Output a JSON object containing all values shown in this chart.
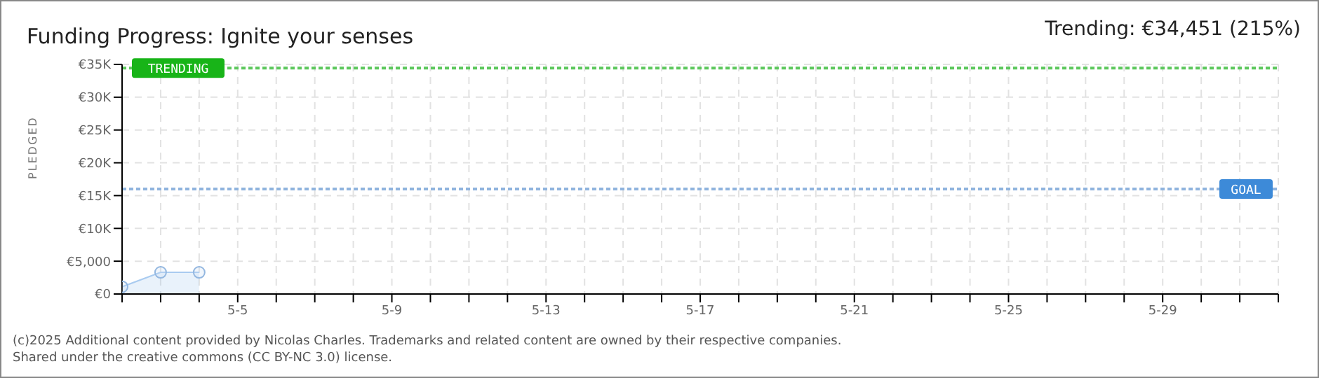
{
  "chart_data": {
    "type": "area",
    "title": "Funding Progress: Ignite your senses",
    "subtitle": "Trending:  €34,451 (215%)",
    "ylabel": "PLEDGED",
    "annotations": [
      "(c)2025 Additional content provided by Nicolas Charles. Trademarks and related content are owned by their respective companies.",
      "Shared under the creative commons (CC BY-NC 3.0) license."
    ],
    "x": [
      "2025-05-02",
      "2025-05-03",
      "2025-05-04"
    ],
    "series": [
      {
        "color": "#a9cbf0",
        "values": [
          1100,
          3300,
          3300
        ]
      }
    ],
    "marker": "circle",
    "grid": true,
    "xlim": [
      "2025-05-02",
      "2025-06-01"
    ],
    "xticks": [
      {
        "value": "2025-05-02",
        "label": null
      },
      {
        "value": "2025-05-03",
        "label": null
      },
      {
        "value": "2025-05-04",
        "label": null
      },
      {
        "value": "2025-05-05",
        "label": "5-5"
      },
      {
        "value": "2025-05-06",
        "label": null
      },
      {
        "value": "2025-05-07",
        "label": null
      },
      {
        "value": "2025-05-08",
        "label": null
      },
      {
        "value": "2025-05-09",
        "label": "5-9"
      },
      {
        "value": "2025-05-10",
        "label": null
      },
      {
        "value": "2025-05-11",
        "label": null
      },
      {
        "value": "2025-05-12",
        "label": null
      },
      {
        "value": "2025-05-13",
        "label": "5-13"
      },
      {
        "value": "2025-05-14",
        "label": null
      },
      {
        "value": "2025-05-15",
        "label": null
      },
      {
        "value": "2025-05-16",
        "label": null
      },
      {
        "value": "2025-05-17",
        "label": "5-17"
      },
      {
        "value": "2025-05-18",
        "label": null
      },
      {
        "value": "2025-05-19",
        "label": null
      },
      {
        "value": "2025-05-20",
        "label": null
      },
      {
        "value": "2025-05-21",
        "label": "5-21"
      },
      {
        "value": "2025-05-22",
        "label": null
      },
      {
        "value": "2025-05-23",
        "label": null
      },
      {
        "value": "2025-05-24",
        "label": null
      },
      {
        "value": "2025-05-25",
        "label": "5-25"
      },
      {
        "value": "2025-05-26",
        "label": null
      },
      {
        "value": "2025-05-27",
        "label": null
      },
      {
        "value": "2025-05-28",
        "label": null
      },
      {
        "value": "2025-05-29",
        "label": "5-29"
      },
      {
        "value": "2025-05-30",
        "label": null
      },
      {
        "value": "2025-05-31",
        "label": null
      },
      {
        "value": "2025-06-01",
        "label": null
      }
    ],
    "ylim": [
      0,
      35000
    ],
    "yticks": [
      {
        "value": 0,
        "label": "€0"
      },
      {
        "value": 5000,
        "label": "€5,000"
      },
      {
        "value": 10000,
        "label": "€10K"
      },
      {
        "value": 15000,
        "label": "€15K"
      },
      {
        "value": 20000,
        "label": "€20K"
      },
      {
        "value": 25000,
        "label": "€25K"
      },
      {
        "value": 30000,
        "label": "€30K"
      },
      {
        "value": 35000,
        "label": "€35K"
      }
    ],
    "ref_lines": [
      {
        "axis": "y",
        "value": 34451,
        "label": "TRENDING",
        "color": "#5cc85c",
        "line_style": "dotted"
      },
      {
        "axis": "y",
        "value": 16000,
        "label": "GOAL",
        "color": "#8fb3de",
        "line_style": "dotted"
      }
    ]
  }
}
